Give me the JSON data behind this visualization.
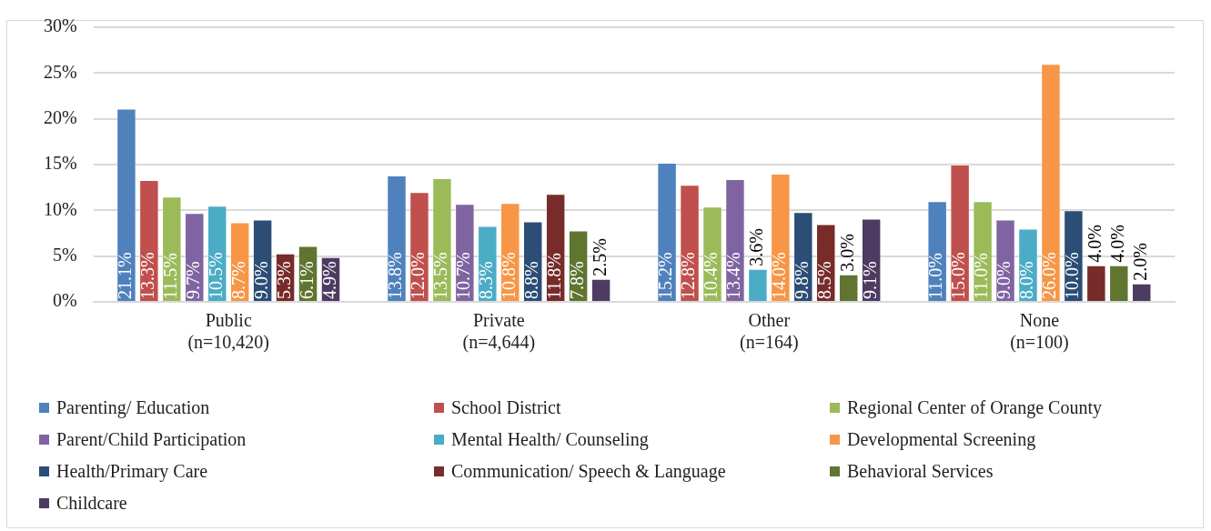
{
  "chart_data": {
    "type": "bar",
    "categories": [
      "Public\n(n=10,420)",
      "Private\n(n=4,644)",
      "Other\n(n=164)",
      "None\n(n=100)"
    ],
    "series": [
      {
        "name": "Parenting/ Education",
        "color": "#4f81bd",
        "values": [
          21.1,
          13.8,
          15.2,
          11.0
        ],
        "value_labels": [
          "21.1%",
          "13.8%",
          "15.2%",
          "11.0%"
        ]
      },
      {
        "name": "School District",
        "color": "#c0504d",
        "values": [
          13.3,
          12.0,
          12.8,
          15.0
        ],
        "value_labels": [
          "13.3%",
          "12.0%",
          "12.8%",
          "15.0%"
        ]
      },
      {
        "name": "Regional Center of Orange County",
        "color": "#9bbb59",
        "values": [
          11.5,
          13.5,
          10.4,
          11.0
        ],
        "value_labels": [
          "11.5%",
          "13.5%",
          "10.4%",
          "11.0%"
        ]
      },
      {
        "name": "Parent/Child Participation",
        "color": "#8064a2",
        "values": [
          9.7,
          10.7,
          13.4,
          9.0
        ],
        "value_labels": [
          "9.7%",
          "10.7%",
          "13.4%",
          "9.0%"
        ]
      },
      {
        "name": "Mental Health/ Counseling",
        "color": "#4bacc6",
        "values": [
          10.5,
          8.3,
          3.6,
          8.0
        ],
        "value_labels": [
          "10.5%",
          "8.3%",
          "3.6%",
          "8.0%"
        ]
      },
      {
        "name": "Developmental Screening",
        "color": "#f79646",
        "values": [
          8.7,
          10.8,
          14.0,
          26.0
        ],
        "value_labels": [
          "8.7%",
          "10.8%",
          "14.0%",
          "26.0%"
        ]
      },
      {
        "name": "Health/Primary Care",
        "color": "#2c4d75",
        "values": [
          9.0,
          8.8,
          9.8,
          10.0
        ],
        "value_labels": [
          "9.0%",
          "8.8%",
          "9.8%",
          "10.0%"
        ]
      },
      {
        "name": "Communication/ Speech & Language",
        "color": "#772c2a",
        "values": [
          5.3,
          11.8,
          8.5,
          4.0
        ],
        "value_labels": [
          "5.3%",
          "11.8%",
          "8.5%",
          "4.0%"
        ]
      },
      {
        "name": "Behavioral Services",
        "color": "#5f7530",
        "values": [
          6.1,
          7.8,
          3.0,
          4.0
        ],
        "value_labels": [
          "6.1%",
          "7.8%",
          "3.0%",
          "4.0%"
        ]
      },
      {
        "name": "Childcare",
        "color": "#4d3b62",
        "values": [
          4.9,
          2.5,
          9.1,
          2.0
        ],
        "value_labels": [
          "4.9%",
          "2.5%",
          "9.1%",
          "2.0%"
        ]
      }
    ],
    "ylim": [
      0,
      30
    ],
    "yticks": [
      {
        "value": 0,
        "label": "0%"
      },
      {
        "value": 5,
        "label": "5%"
      },
      {
        "value": 10,
        "label": "10%"
      },
      {
        "value": 15,
        "label": "15%"
      },
      {
        "value": 20,
        "label": "20%"
      },
      {
        "value": 25,
        "label": "25%"
      },
      {
        "value": 30,
        "label": "30%"
      }
    ],
    "grid": "y",
    "legend": "bottom"
  }
}
